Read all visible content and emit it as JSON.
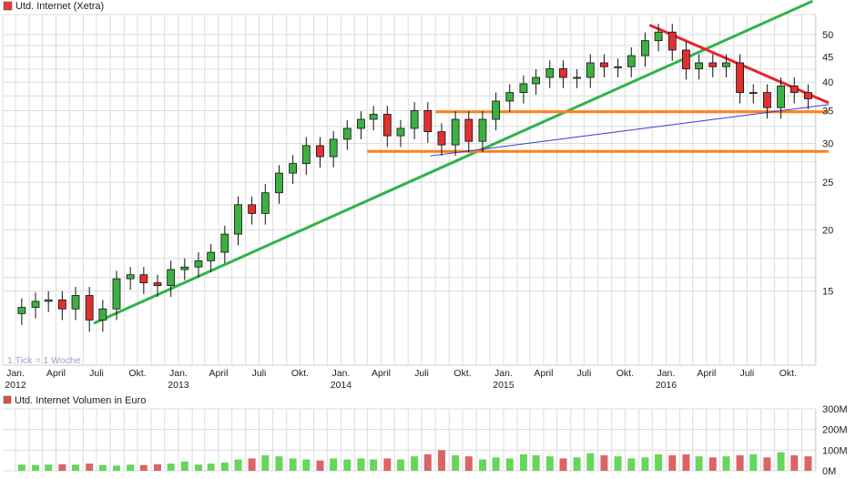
{
  "chart_data": {
    "type": "candlestick",
    "title": "Utd. Internet (Xetra)",
    "title_marker_color": "#e8393b",
    "note": "1 Tick = 1 Woche",
    "y_scale": "log",
    "ylim": [
      12.5,
      54
    ],
    "y_ticks": [
      15,
      20,
      25,
      30,
      35,
      40,
      45,
      50
    ],
    "x_range": [
      "2012-01-01",
      "2016-12-20"
    ],
    "x_ticks": [
      {
        "date": "2012-01-01",
        "label": "Jan.",
        "year": "2012"
      },
      {
        "date": "2012-04-01",
        "label": "April"
      },
      {
        "date": "2012-07-01",
        "label": "Juli"
      },
      {
        "date": "2012-10-01",
        "label": "Okt."
      },
      {
        "date": "2013-01-01",
        "label": "Jan.",
        "year": "2013"
      },
      {
        "date": "2013-04-01",
        "label": "April"
      },
      {
        "date": "2013-07-01",
        "label": "Juli"
      },
      {
        "date": "2013-10-01",
        "label": "Okt."
      },
      {
        "date": "2014-01-01",
        "label": "Jan.",
        "year": "2014"
      },
      {
        "date": "2014-04-01",
        "label": "April"
      },
      {
        "date": "2014-07-01",
        "label": "Juli"
      },
      {
        "date": "2014-10-01",
        "label": "Okt."
      },
      {
        "date": "2015-01-01",
        "label": "Jan.",
        "year": "2015"
      },
      {
        "date": "2015-04-01",
        "label": "April"
      },
      {
        "date": "2015-07-01",
        "label": "Juli"
      },
      {
        "date": "2015-10-01",
        "label": "Okt."
      },
      {
        "date": "2016-01-01",
        "label": "Jan.",
        "year": "2016"
      },
      {
        "date": "2016-04-01",
        "label": "April"
      },
      {
        "date": "2016-07-01",
        "label": "Juli"
      },
      {
        "date": "2016-10-01",
        "label": "Okt."
      }
    ],
    "grid": true,
    "up_color": "#3cb043",
    "down_color": "#e03030",
    "start_month": "2012-01",
    "ohlc": [
      [
        13.5,
        14.5,
        12.8,
        13.9
      ],
      [
        13.9,
        14.9,
        13.2,
        14.3
      ],
      [
        14.3,
        15.0,
        13.6,
        14.4
      ],
      [
        14.4,
        15.0,
        13.1,
        13.8
      ],
      [
        13.8,
        15.3,
        13.1,
        14.7
      ],
      [
        14.7,
        15.3,
        12.4,
        13.1
      ],
      [
        13.1,
        14.4,
        12.4,
        13.8
      ],
      [
        13.8,
        16.5,
        13.1,
        15.9
      ],
      [
        15.9,
        16.8,
        15.1,
        16.2
      ],
      [
        16.2,
        16.8,
        14.8,
        15.6
      ],
      [
        15.6,
        16.2,
        14.6,
        15.4
      ],
      [
        15.4,
        17.3,
        14.6,
        16.6
      ],
      [
        16.6,
        17.5,
        15.8,
        16.8
      ],
      [
        16.8,
        18.0,
        16.0,
        17.3
      ],
      [
        17.3,
        18.7,
        16.4,
        18.0
      ],
      [
        18.0,
        20.4,
        17.1,
        19.6
      ],
      [
        19.6,
        23.4,
        18.6,
        22.5
      ],
      [
        22.5,
        23.4,
        20.5,
        21.6
      ],
      [
        21.6,
        24.8,
        20.5,
        23.8
      ],
      [
        23.8,
        27.1,
        22.6,
        26.1
      ],
      [
        26.1,
        28.4,
        24.8,
        27.3
      ],
      [
        27.3,
        30.9,
        25.9,
        29.7
      ],
      [
        29.7,
        30.9,
        26.8,
        28.2
      ],
      [
        28.2,
        31.8,
        26.8,
        30.6
      ],
      [
        30.6,
        33.5,
        29.1,
        32.2
      ],
      [
        32.2,
        34.9,
        30.6,
        33.6
      ],
      [
        33.6,
        35.8,
        31.9,
        34.4
      ],
      [
        34.4,
        35.8,
        29.5,
        31.1
      ],
      [
        31.1,
        33.5,
        29.5,
        32.2
      ],
      [
        32.2,
        36.4,
        30.6,
        35.0
      ],
      [
        35.0,
        36.4,
        30.1,
        31.7
      ],
      [
        31.7,
        33.0,
        28.3,
        29.8
      ],
      [
        29.8,
        34.9,
        28.3,
        33.6
      ],
      [
        33.6,
        34.9,
        28.8,
        30.3
      ],
      [
        30.3,
        34.9,
        28.8,
        33.6
      ],
      [
        33.6,
        38.1,
        31.9,
        36.6
      ],
      [
        36.6,
        39.6,
        34.8,
        38.1
      ],
      [
        38.1,
        41.3,
        36.2,
        39.7
      ],
      [
        39.7,
        42.5,
        37.7,
        40.9
      ],
      [
        40.9,
        44.3,
        38.9,
        42.6
      ],
      [
        42.6,
        44.3,
        38.9,
        40.9
      ],
      [
        40.9,
        42.5,
        38.9,
        40.9
      ],
      [
        40.9,
        45.6,
        38.9,
        43.8
      ],
      [
        43.8,
        45.6,
        40.9,
        43.0
      ],
      [
        43.0,
        44.7,
        40.9,
        43.0
      ],
      [
        43.0,
        47.1,
        40.9,
        45.3
      ],
      [
        45.3,
        50.5,
        43.0,
        48.6
      ],
      [
        48.6,
        52.6,
        46.2,
        50.6
      ],
      [
        50.6,
        52.6,
        44.2,
        46.5
      ],
      [
        46.5,
        48.4,
        40.5,
        42.6
      ],
      [
        42.6,
        45.6,
        40.5,
        43.8
      ],
      [
        43.8,
        45.6,
        40.9,
        43.0
      ],
      [
        43.0,
        45.6,
        40.9,
        43.8
      ],
      [
        43.8,
        45.6,
        36.2,
        38.1
      ],
      [
        38.1,
        39.6,
        36.2,
        38.1
      ],
      [
        38.1,
        39.6,
        33.7,
        35.5
      ],
      [
        35.5,
        40.9,
        33.7,
        39.3
      ],
      [
        39.3,
        40.9,
        36.2,
        38.1
      ],
      [
        38.1,
        39.6,
        35.2,
        37.0
      ]
    ],
    "trendlines": [
      {
        "color": "#2db34a",
        "from": [
          "2012-06-25",
          12.9
        ],
        "to": [
          "2016-11-25",
          58.5
        ]
      },
      {
        "color": "#e8242b",
        "from": [
          "2015-11-25",
          52.3
        ],
        "to": [
          "2016-12-31",
          36.3
        ]
      },
      {
        "color": "#ff7f1a",
        "from": [
          "2014-08-01",
          34.8
        ],
        "to": [
          "2016-12-31",
          34.8
        ]
      },
      {
        "color": "#ff7f1a",
        "from": [
          "2014-03-01",
          28.9
        ],
        "to": [
          "2016-12-31",
          28.9
        ]
      },
      {
        "color": "#3a3ad0",
        "from": [
          "2014-07-20",
          28.3
        ],
        "to": [
          "2016-12-31",
          36.0
        ]
      }
    ],
    "volume": {
      "title": "Utd. Internet Volumen in Euro",
      "title_marker_color": "#d9534f",
      "unit": "M",
      "ylim": [
        0,
        300
      ],
      "y_ticks": [
        {
          "v": 0,
          "label": "0M"
        },
        {
          "v": 100,
          "label": "100M"
        },
        {
          "v": 200,
          "label": "200M"
        },
        {
          "v": 300,
          "label": "300M"
        }
      ],
      "values": [
        30,
        28,
        30,
        32,
        30,
        35,
        28,
        25,
        30,
        28,
        32,
        35,
        45,
        30,
        35,
        40,
        55,
        60,
        75,
        70,
        60,
        55,
        50,
        60,
        55,
        60,
        55,
        60,
        55,
        70,
        80,
        100,
        75,
        70,
        55,
        65,
        60,
        80,
        75,
        70,
        60,
        65,
        85,
        75,
        70,
        60,
        65,
        80,
        75,
        80,
        70,
        65,
        70,
        75,
        80,
        65,
        90,
        75,
        70
      ]
    }
  }
}
